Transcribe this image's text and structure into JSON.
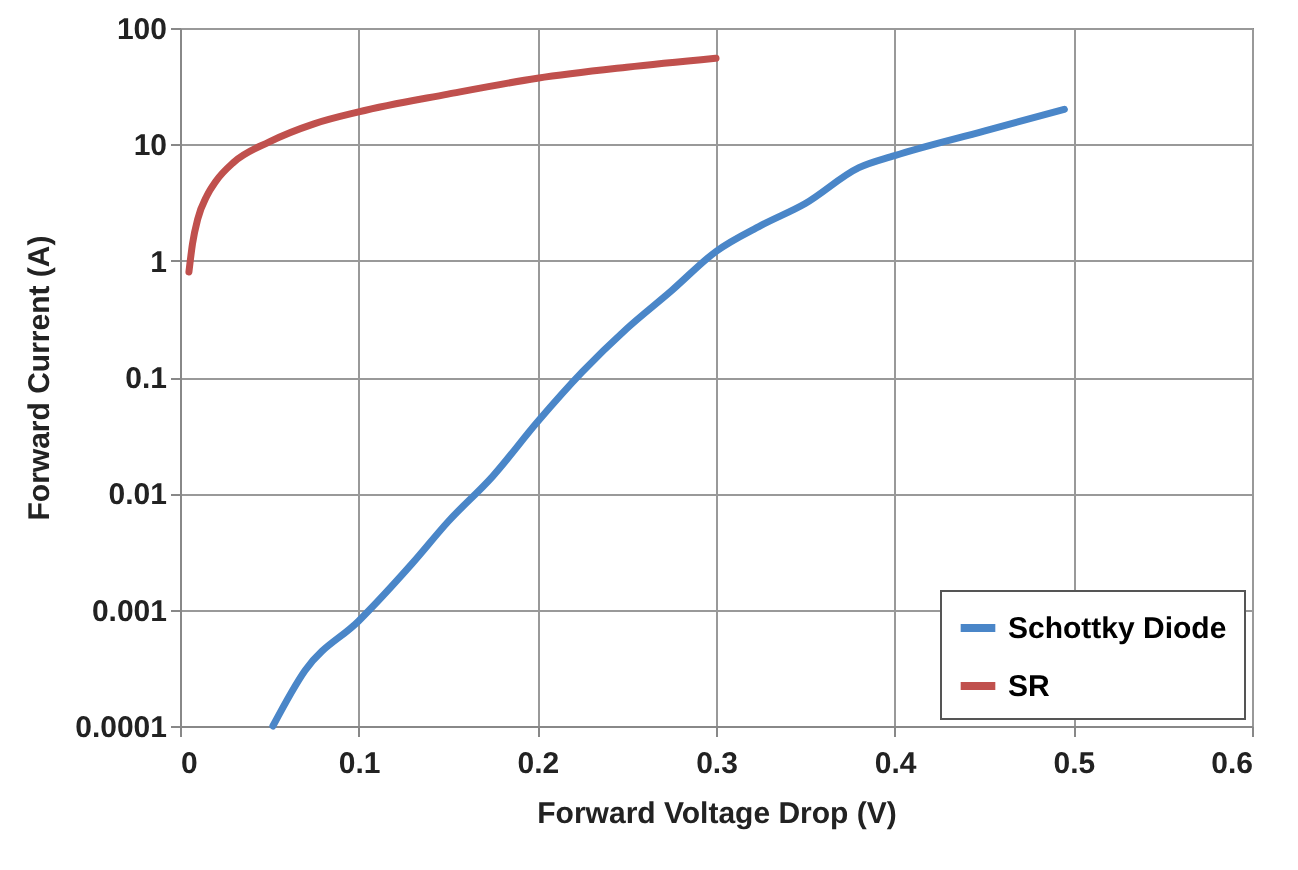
{
  "chart_data": {
    "type": "line",
    "xlabel": "Forward Voltage Drop (V)",
    "ylabel": "Forward Current (A)",
    "log": "y",
    "grid": true,
    "legend": "bottom right",
    "marker": "none",
    "line_style": "solid",
    "xlim": [
      0,
      0.6
    ],
    "xticks": [
      0,
      0.1,
      0.2,
      0.3,
      0.4,
      0.5,
      0.6
    ],
    "ylim": [
      0.0001,
      100
    ],
    "yticks": [
      0.0001,
      0.001,
      0.01,
      0.1,
      1,
      10,
      100
    ],
    "series": [
      {
        "name": "Schottky Diode",
        "color": "#4a86c8",
        "x": [
          0.052,
          0.07,
          0.1,
          0.13,
          0.15,
          0.175,
          0.2,
          0.225,
          0.25,
          0.275,
          0.3,
          0.325,
          0.35,
          0.38,
          0.4,
          0.45,
          0.495
        ],
        "values": [
          0.0001,
          0.0003,
          0.0008,
          0.0025,
          0.0057,
          0.014,
          0.041,
          0.11,
          0.26,
          0.55,
          1.2,
          2,
          3.1,
          6.3,
          8,
          13,
          20
        ]
      },
      {
        "name": "SR",
        "color": "#c0504d",
        "x": [
          0.005,
          0.007,
          0.01,
          0.015,
          0.02,
          0.03,
          0.05,
          0.075,
          0.1,
          0.15,
          0.2,
          0.25,
          0.3
        ],
        "values": [
          0.8,
          1.4,
          2.3,
          3.6,
          4.8,
          7,
          10.5,
          15,
          19,
          27,
          37,
          46,
          55
        ]
      }
    ]
  }
}
